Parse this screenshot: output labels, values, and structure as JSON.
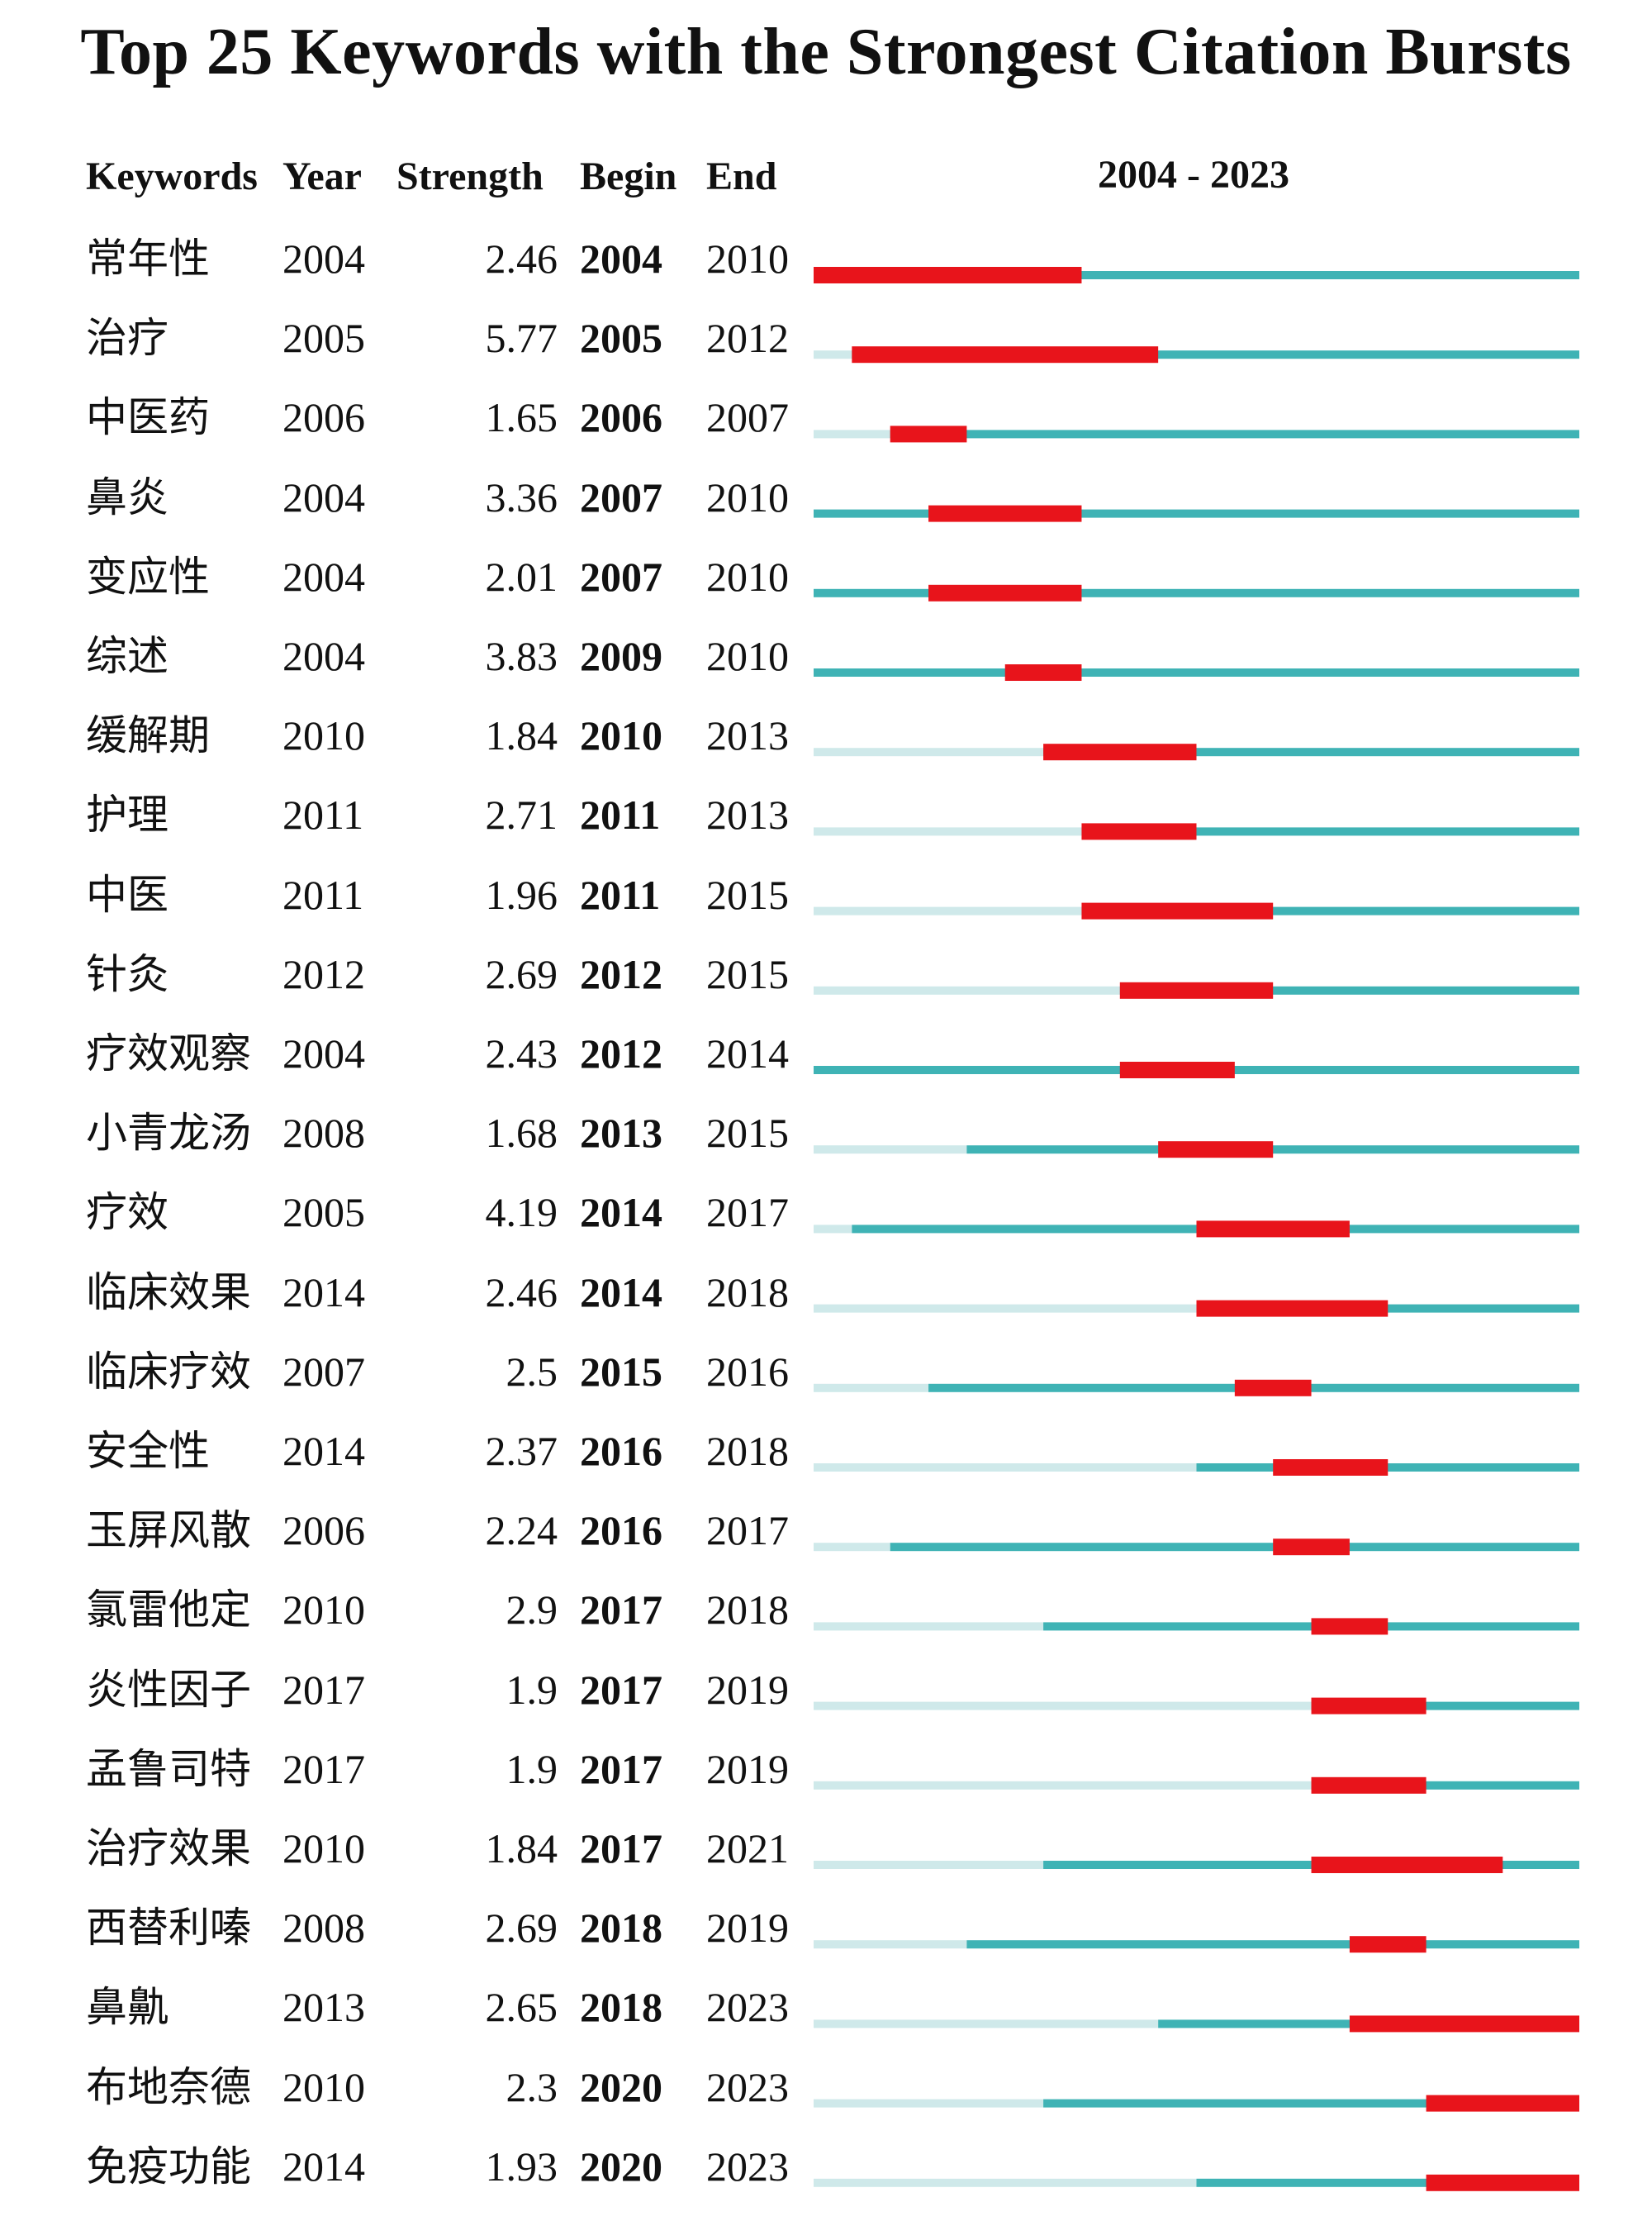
{
  "title": "Top 25 Keywords with the Strongest Citation Bursts",
  "headers": {
    "keywords": "Keywords",
    "year": "Year",
    "strength": "Strength",
    "begin": "Begin",
    "end": "End",
    "range": "2004 - 2023"
  },
  "colors": {
    "burst": "#e8141b",
    "active": "#3fb3b5",
    "inactive": "#cfe9ea"
  },
  "chart_data": {
    "type": "table",
    "timeline_start": 2004,
    "timeline_end": 2023,
    "columns": [
      "Keywords",
      "Year",
      "Strength",
      "Begin",
      "End"
    ],
    "rows": [
      {
        "keyword": "常年性",
        "year": 2004,
        "strength": "2.46",
        "begin": 2004,
        "end": 2010
      },
      {
        "keyword": "治疗",
        "year": 2005,
        "strength": "5.77",
        "begin": 2005,
        "end": 2012
      },
      {
        "keyword": "中医药",
        "year": 2006,
        "strength": "1.65",
        "begin": 2006,
        "end": 2007
      },
      {
        "keyword": "鼻炎",
        "year": 2004,
        "strength": "3.36",
        "begin": 2007,
        "end": 2010
      },
      {
        "keyword": "变应性",
        "year": 2004,
        "strength": "2.01",
        "begin": 2007,
        "end": 2010
      },
      {
        "keyword": "综述",
        "year": 2004,
        "strength": "3.83",
        "begin": 2009,
        "end": 2010
      },
      {
        "keyword": "缓解期",
        "year": 2010,
        "strength": "1.84",
        "begin": 2010,
        "end": 2013
      },
      {
        "keyword": "护理",
        "year": 2011,
        "strength": "2.71",
        "begin": 2011,
        "end": 2013
      },
      {
        "keyword": "中医",
        "year": 2011,
        "strength": "1.96",
        "begin": 2011,
        "end": 2015
      },
      {
        "keyword": "针灸",
        "year": 2012,
        "strength": "2.69",
        "begin": 2012,
        "end": 2015
      },
      {
        "keyword": "疗效观察",
        "year": 2004,
        "strength": "2.43",
        "begin": 2012,
        "end": 2014
      },
      {
        "keyword": "小青龙汤",
        "year": 2008,
        "strength": "1.68",
        "begin": 2013,
        "end": 2015
      },
      {
        "keyword": "疗效",
        "year": 2005,
        "strength": "4.19",
        "begin": 2014,
        "end": 2017
      },
      {
        "keyword": "临床效果",
        "year": 2014,
        "strength": "2.46",
        "begin": 2014,
        "end": 2018
      },
      {
        "keyword": "临床疗效",
        "year": 2007,
        "strength": "2.5",
        "begin": 2015,
        "end": 2016
      },
      {
        "keyword": "安全性",
        "year": 2014,
        "strength": "2.37",
        "begin": 2016,
        "end": 2018
      },
      {
        "keyword": "玉屏风散",
        "year": 2006,
        "strength": "2.24",
        "begin": 2016,
        "end": 2017
      },
      {
        "keyword": "氯雷他定",
        "year": 2010,
        "strength": "2.9",
        "begin": 2017,
        "end": 2018
      },
      {
        "keyword": "炎性因子",
        "year": 2017,
        "strength": "1.9",
        "begin": 2017,
        "end": 2019
      },
      {
        "keyword": "孟鲁司特",
        "year": 2017,
        "strength": "1.9",
        "begin": 2017,
        "end": 2019
      },
      {
        "keyword": "治疗效果",
        "year": 2010,
        "strength": "1.84",
        "begin": 2017,
        "end": 2021
      },
      {
        "keyword": "西替利嗪",
        "year": 2008,
        "strength": "2.69",
        "begin": 2018,
        "end": 2019
      },
      {
        "keyword": "鼻鼽",
        "year": 2013,
        "strength": "2.65",
        "begin": 2018,
        "end": 2023
      },
      {
        "keyword": "布地奈德",
        "year": 2010,
        "strength": "2.3",
        "begin": 2020,
        "end": 2023
      },
      {
        "keyword": "免疫功能",
        "year": 2014,
        "strength": "1.93",
        "begin": 2020,
        "end": 2023
      }
    ]
  }
}
